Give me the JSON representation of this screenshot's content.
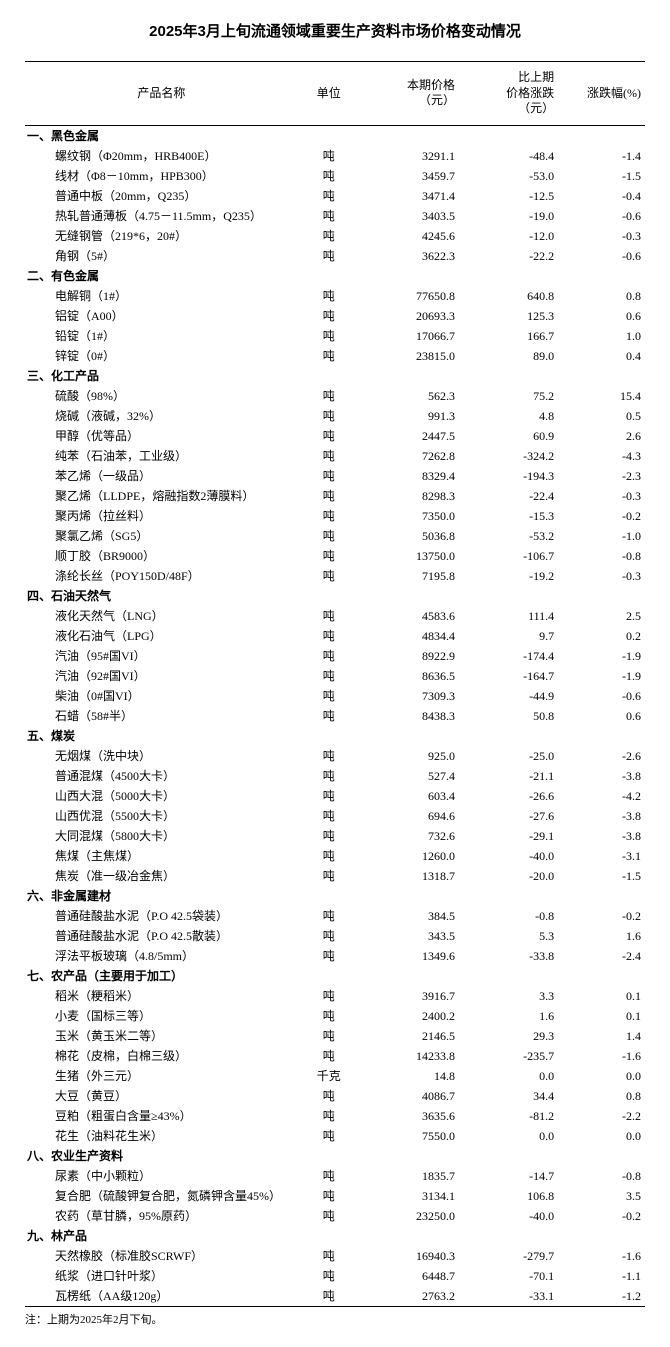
{
  "title": "2025年3月上旬流通领域重要生产资料市场价格变动情况",
  "headers": {
    "name": "产品名称",
    "unit": "单位",
    "price": "本期价格\n（元）",
    "change": "比上期\n价格涨跌\n（元）",
    "pct": "涨跌幅(%)"
  },
  "footnote": "注：上期为2025年2月下旬。",
  "sections": [
    {
      "label": "一、黑色金属",
      "rows": [
        {
          "name": "螺纹钢（Φ20mm，HRB400E）",
          "unit": "吨",
          "price": "3291.1",
          "change": "-48.4",
          "pct": "-1.4"
        },
        {
          "name": "线材（Φ8－10mm，HPB300）",
          "unit": "吨",
          "price": "3459.7",
          "change": "-53.0",
          "pct": "-1.5"
        },
        {
          "name": "普通中板（20mm，Q235）",
          "unit": "吨",
          "price": "3471.4",
          "change": "-12.5",
          "pct": "-0.4"
        },
        {
          "name": "热轧普通薄板（4.75－11.5mm，Q235）",
          "unit": "吨",
          "price": "3403.5",
          "change": "-19.0",
          "pct": "-0.6"
        },
        {
          "name": "无缝钢管（219*6，20#）",
          "unit": "吨",
          "price": "4245.6",
          "change": "-12.0",
          "pct": "-0.3"
        },
        {
          "name": "角钢（5#）",
          "unit": "吨",
          "price": "3622.3",
          "change": "-22.2",
          "pct": "-0.6"
        }
      ]
    },
    {
      "label": "二、有色金属",
      "rows": [
        {
          "name": "电解铜（1#）",
          "unit": "吨",
          "price": "77650.8",
          "change": "640.8",
          "pct": "0.8"
        },
        {
          "name": "铝锭（A00）",
          "unit": "吨",
          "price": "20693.3",
          "change": "125.3",
          "pct": "0.6"
        },
        {
          "name": "铅锭（1#）",
          "unit": "吨",
          "price": "17066.7",
          "change": "166.7",
          "pct": "1.0"
        },
        {
          "name": "锌锭（0#）",
          "unit": "吨",
          "price": "23815.0",
          "change": "89.0",
          "pct": "0.4"
        }
      ]
    },
    {
      "label": "三、化工产品",
      "rows": [
        {
          "name": "硫酸（98%）",
          "unit": "吨",
          "price": "562.3",
          "change": "75.2",
          "pct": "15.4"
        },
        {
          "name": "烧碱（液碱，32%）",
          "unit": "吨",
          "price": "991.3",
          "change": "4.8",
          "pct": "0.5"
        },
        {
          "name": "甲醇（优等品）",
          "unit": "吨",
          "price": "2447.5",
          "change": "60.9",
          "pct": "2.6"
        },
        {
          "name": "纯苯（石油苯，工业级）",
          "unit": "吨",
          "price": "7262.8",
          "change": "-324.2",
          "pct": "-4.3"
        },
        {
          "name": "苯乙烯（一级品）",
          "unit": "吨",
          "price": "8329.4",
          "change": "-194.3",
          "pct": "-2.3"
        },
        {
          "name": "聚乙烯（LLDPE，熔融指数2薄膜料）",
          "unit": "吨",
          "price": "8298.3",
          "change": "-22.4",
          "pct": "-0.3"
        },
        {
          "name": "聚丙烯（拉丝料）",
          "unit": "吨",
          "price": "7350.0",
          "change": "-15.3",
          "pct": "-0.2"
        },
        {
          "name": "聚氯乙烯（SG5）",
          "unit": "吨",
          "price": "5036.8",
          "change": "-53.2",
          "pct": "-1.0"
        },
        {
          "name": "顺丁胶（BR9000）",
          "unit": "吨",
          "price": "13750.0",
          "change": "-106.7",
          "pct": "-0.8"
        },
        {
          "name": "涤纶长丝（POY150D/48F）",
          "unit": "吨",
          "price": "7195.8",
          "change": "-19.2",
          "pct": "-0.3"
        }
      ]
    },
    {
      "label": "四、石油天然气",
      "rows": [
        {
          "name": "液化天然气（LNG）",
          "unit": "吨",
          "price": "4583.6",
          "change": "111.4",
          "pct": "2.5"
        },
        {
          "name": "液化石油气（LPG）",
          "unit": "吨",
          "price": "4834.4",
          "change": "9.7",
          "pct": "0.2"
        },
        {
          "name": "汽油（95#国VI）",
          "unit": "吨",
          "price": "8922.9",
          "change": "-174.4",
          "pct": "-1.9"
        },
        {
          "name": "汽油（92#国VI）",
          "unit": "吨",
          "price": "8636.5",
          "change": "-164.7",
          "pct": "-1.9"
        },
        {
          "name": "柴油（0#国VI）",
          "unit": "吨",
          "price": "7309.3",
          "change": "-44.9",
          "pct": "-0.6"
        },
        {
          "name": "石蜡（58#半）",
          "unit": "吨",
          "price": "8438.3",
          "change": "50.8",
          "pct": "0.6"
        }
      ]
    },
    {
      "label": "五、煤炭",
      "rows": [
        {
          "name": "无烟煤（洗中块）",
          "unit": "吨",
          "price": "925.0",
          "change": "-25.0",
          "pct": "-2.6"
        },
        {
          "name": "普通混煤（4500大卡）",
          "unit": "吨",
          "price": "527.4",
          "change": "-21.1",
          "pct": "-3.8"
        },
        {
          "name": "山西大混（5000大卡）",
          "unit": "吨",
          "price": "603.4",
          "change": "-26.6",
          "pct": "-4.2"
        },
        {
          "name": "山西优混（5500大卡）",
          "unit": "吨",
          "price": "694.6",
          "change": "-27.6",
          "pct": "-3.8"
        },
        {
          "name": "大同混煤（5800大卡）",
          "unit": "吨",
          "price": "732.6",
          "change": "-29.1",
          "pct": "-3.8"
        },
        {
          "name": "焦煤（主焦煤）",
          "unit": "吨",
          "price": "1260.0",
          "change": "-40.0",
          "pct": "-3.1"
        },
        {
          "name": "焦炭（准一级冶金焦）",
          "unit": "吨",
          "price": "1318.7",
          "change": "-20.0",
          "pct": "-1.5"
        }
      ]
    },
    {
      "label": "六、非金属建材",
      "rows": [
        {
          "name": "普通硅酸盐水泥（P.O 42.5袋装）",
          "unit": "吨",
          "price": "384.5",
          "change": "-0.8",
          "pct": "-0.2"
        },
        {
          "name": "普通硅酸盐水泥（P.O 42.5散装）",
          "unit": "吨",
          "price": "343.5",
          "change": "5.3",
          "pct": "1.6"
        },
        {
          "name": "浮法平板玻璃（4.8/5mm）",
          "unit": "吨",
          "price": "1349.6",
          "change": "-33.8",
          "pct": "-2.4"
        }
      ]
    },
    {
      "label": "七、农产品（主要用于加工）",
      "rows": [
        {
          "name": "稻米（粳稻米）",
          "unit": "吨",
          "price": "3916.7",
          "change": "3.3",
          "pct": "0.1"
        },
        {
          "name": "小麦（国标三等）",
          "unit": "吨",
          "price": "2400.2",
          "change": "1.6",
          "pct": "0.1"
        },
        {
          "name": "玉米（黄玉米二等）",
          "unit": "吨",
          "price": "2146.5",
          "change": "29.3",
          "pct": "1.4"
        },
        {
          "name": "棉花（皮棉，白棉三级）",
          "unit": "吨",
          "price": "14233.8",
          "change": "-235.7",
          "pct": "-1.6"
        },
        {
          "name": "生猪（外三元）",
          "unit": "千克",
          "price": "14.8",
          "change": "0.0",
          "pct": "0.0"
        },
        {
          "name": "大豆（黄豆）",
          "unit": "吨",
          "price": "4086.7",
          "change": "34.4",
          "pct": "0.8"
        },
        {
          "name": "豆粕（粗蛋白含量≥43%）",
          "unit": "吨",
          "price": "3635.6",
          "change": "-81.2",
          "pct": "-2.2"
        },
        {
          "name": "花生（油料花生米）",
          "unit": "吨",
          "price": "7550.0",
          "change": "0.0",
          "pct": "0.0"
        }
      ]
    },
    {
      "label": "八、农业生产资料",
      "rows": [
        {
          "name": "尿素（中小颗粒）",
          "unit": "吨",
          "price": "1835.7",
          "change": "-14.7",
          "pct": "-0.8"
        },
        {
          "name": "复合肥（硫酸钾复合肥，氮磷钾含量45%）",
          "unit": "吨",
          "price": "3134.1",
          "change": "106.8",
          "pct": "3.5"
        },
        {
          "name": "农药（草甘膦，95%原药）",
          "unit": "吨",
          "price": "23250.0",
          "change": "-40.0",
          "pct": "-0.2"
        }
      ]
    },
    {
      "label": "九、林产品",
      "rows": [
        {
          "name": "天然橡胶（标准胶SCRWF）",
          "unit": "吨",
          "price": "16940.3",
          "change": "-279.7",
          "pct": "-1.6"
        },
        {
          "name": "纸浆（进口针叶浆）",
          "unit": "吨",
          "price": "6448.7",
          "change": "-70.1",
          "pct": "-1.1"
        },
        {
          "name": "瓦楞纸（AA级120g）",
          "unit": "吨",
          "price": "2763.2",
          "change": "-33.1",
          "pct": "-1.2"
        }
      ]
    }
  ]
}
